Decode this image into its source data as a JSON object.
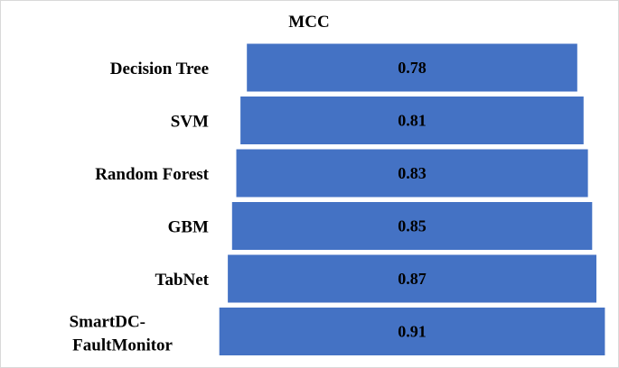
{
  "chart_data": {
    "type": "bar",
    "orientation": "horizontal",
    "title": "MCC",
    "categories": [
      "Decision Tree",
      "SVM",
      "Random Forest",
      "GBM",
      "TabNet",
      "SmartDC-FaultMonitor"
    ],
    "category_lines": [
      [
        "Decision Tree"
      ],
      [
        "SVM"
      ],
      [
        "Random Forest"
      ],
      [
        "GBM"
      ],
      [
        "TabNet"
      ],
      [
        "SmartDC-",
        "FaultMonitor"
      ]
    ],
    "values": [
      0.78,
      0.81,
      0.83,
      0.85,
      0.87,
      0.91
    ],
    "data_labels": [
      "0.78",
      "0.81",
      "0.83",
      "0.85",
      "0.87",
      "0.91"
    ],
    "bar_color": "#4472C4",
    "bar_alignment": "center",
    "grid": false,
    "legend": "none",
    "xlabel": "",
    "ylabel": ""
  }
}
